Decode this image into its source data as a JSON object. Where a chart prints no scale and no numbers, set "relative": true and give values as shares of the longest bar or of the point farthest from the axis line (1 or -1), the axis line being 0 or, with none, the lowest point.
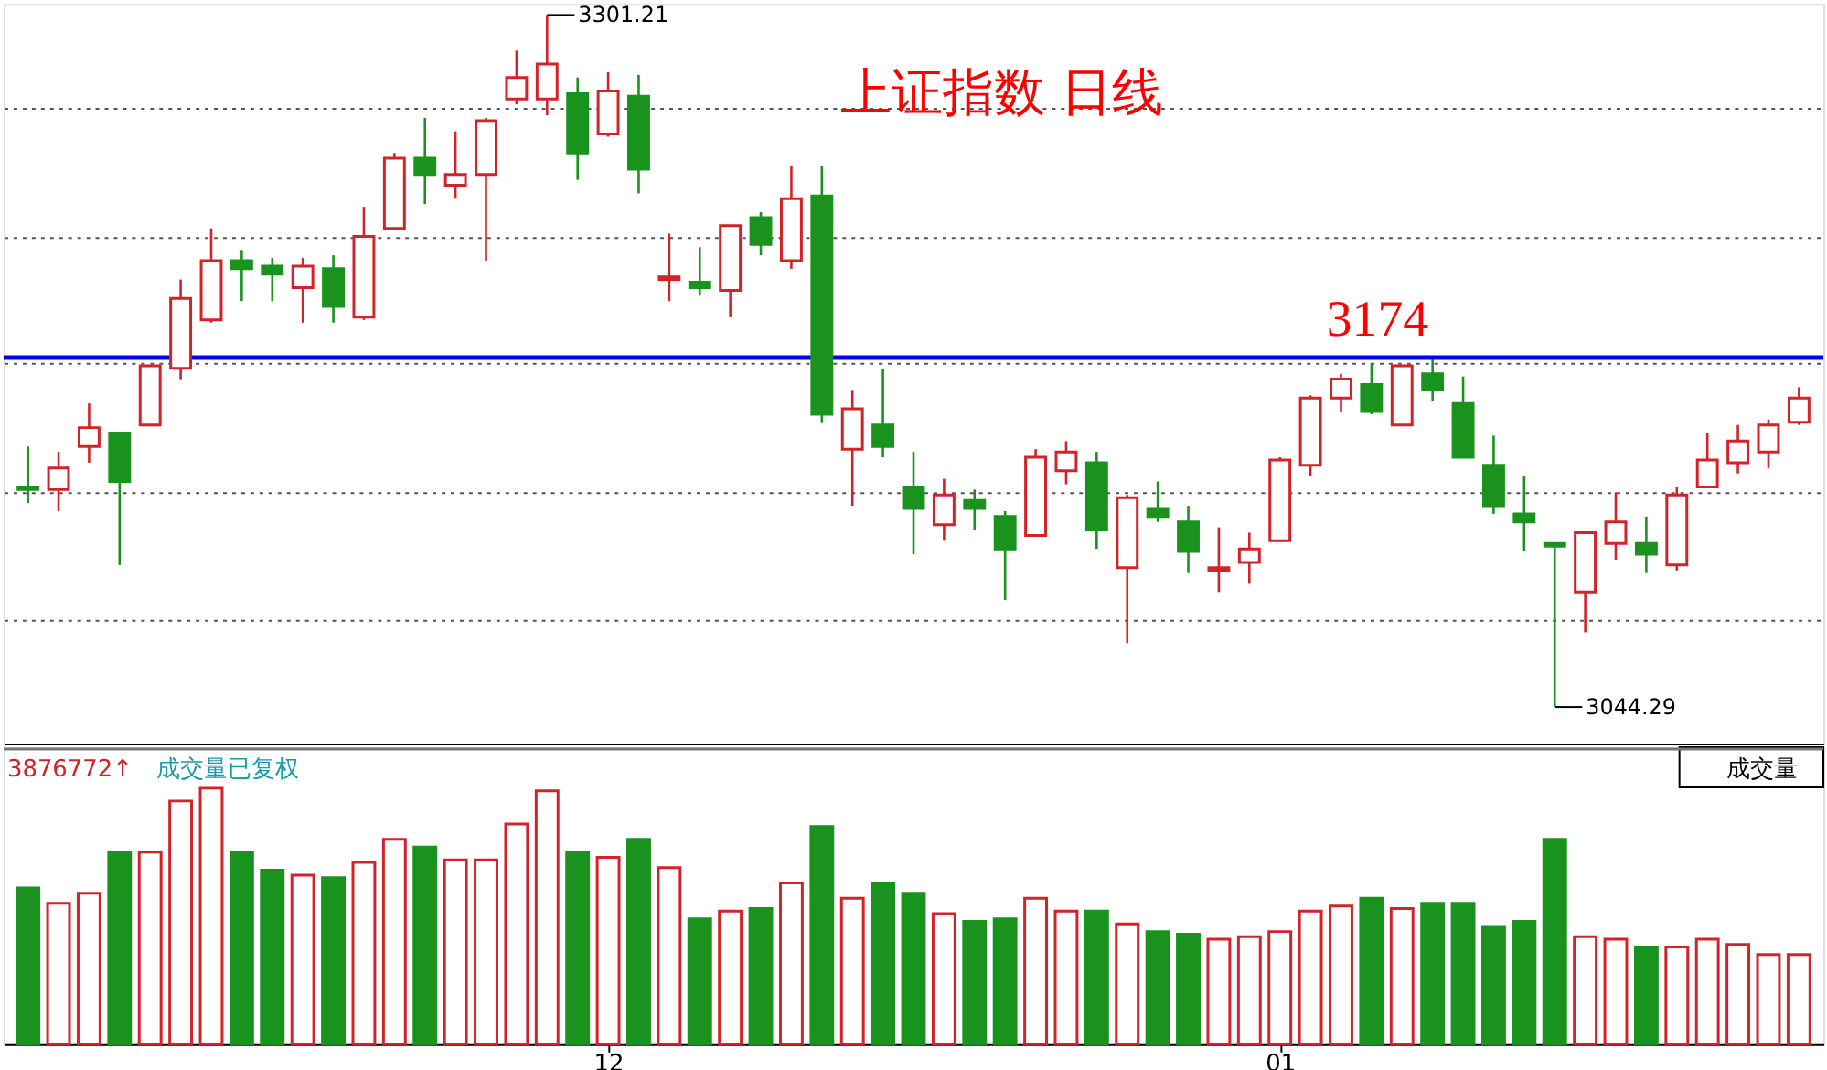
{
  "chart_data": [
    {
      "type": "candlestick",
      "title": "上证指数 日线",
      "categories": [
        null,
        null,
        null,
        null,
        null,
        null,
        null,
        null,
        null,
        null,
        null,
        null,
        null,
        null,
        null,
        null,
        null,
        null,
        null,
        "12",
        null,
        null,
        null,
        null,
        null,
        null,
        null,
        null,
        null,
        null,
        null,
        null,
        null,
        null,
        null,
        null,
        null,
        null,
        null,
        null,
        null,
        "01",
        null,
        null,
        null,
        null,
        null,
        null,
        null,
        null,
        null,
        null,
        null,
        null,
        null,
        null,
        null,
        null,
        null
      ],
      "ohlc": [
        [
          3126,
          3141,
          3120,
          3125
        ],
        [
          3125,
          3139,
          3117,
          3133
        ],
        [
          3141,
          3157,
          3135,
          3148
        ],
        [
          3146,
          3146,
          3097,
          3128
        ],
        [
          3149,
          3171,
          3149,
          3171
        ],
        [
          3170,
          3203,
          3166,
          3196
        ],
        [
          3188,
          3222,
          3187,
          3210
        ],
        [
          3210,
          3214,
          3195,
          3207
        ],
        [
          3208,
          3211,
          3195,
          3205
        ],
        [
          3200,
          3211,
          3187,
          3208
        ],
        [
          3207,
          3212,
          3187,
          3193
        ],
        [
          3189,
          3230,
          3188,
          3219
        ],
        [
          3222,
          3250,
          3222,
          3248
        ],
        [
          3248,
          3263,
          3231,
          3242
        ],
        [
          3238,
          3258,
          3233,
          3242
        ],
        [
          3242,
          3263,
          3210,
          3262
        ],
        [
          3270,
          3288,
          3268,
          3278
        ],
        [
          3270,
          3301.21,
          3264,
          3283
        ],
        [
          3272,
          3278,
          3240,
          3250
        ],
        [
          3257,
          3280,
          3256,
          3273
        ],
        [
          3271,
          3279,
          3235,
          3244
        ],
        [
          3203,
          3220,
          3195,
          3204
        ],
        [
          3202,
          3215,
          3197,
          3200
        ],
        [
          3199,
          3223,
          3189,
          3223
        ],
        [
          3226,
          3228,
          3212,
          3216
        ],
        [
          3210,
          3245,
          3207,
          3233
        ],
        [
          3234,
          3245,
          3150,
          3153
        ],
        [
          3140,
          3162,
          3119,
          3155
        ],
        [
          3149,
          3170,
          3137,
          3141
        ],
        [
          3126,
          3139,
          3101,
          3118
        ],
        [
          3112,
          3129,
          3106,
          3123
        ],
        [
          3121,
          3125,
          3110,
          3118
        ],
        [
          3115,
          3117,
          3084,
          3103
        ],
        [
          3108,
          3140,
          3108,
          3137
        ],
        [
          3132,
          3143,
          3127,
          3139
        ],
        [
          3135,
          3139,
          3103,
          3110
        ],
        [
          3096,
          3123,
          3068,
          3122
        ],
        [
          3118,
          3128,
          3113,
          3115
        ],
        [
          3113,
          3119,
          3094,
          3102
        ],
        [
          3095,
          3111,
          3087,
          3096
        ],
        [
          3098,
          3109,
          3090,
          3103
        ],
        [
          3106,
          3137,
          3106,
          3136
        ],
        [
          3134,
          3160,
          3130,
          3159
        ],
        [
          3159,
          3168,
          3154,
          3166
        ],
        [
          3164,
          3172,
          3153,
          3154
        ],
        [
          3149,
          3171,
          3149,
          3171
        ],
        [
          3168,
          3174,
          3158,
          3162
        ],
        [
          3157,
          3167,
          3137,
          3137
        ],
        [
          3134,
          3145,
          3116,
          3119
        ],
        [
          3116,
          3130,
          3102,
          3113
        ],
        [
          3105,
          3105,
          3044.29,
          3104
        ],
        [
          3087,
          3109,
          3072,
          3109
        ],
        [
          3105,
          3124,
          3099,
          3113
        ],
        [
          3105,
          3115,
          3094,
          3101
        ],
        [
          3097,
          3126,
          3095,
          3123
        ],
        [
          3126,
          3146,
          3126,
          3136
        ],
        [
          3135,
          3149,
          3131,
          3143
        ],
        [
          3139,
          3151,
          3133,
          3149
        ],
        [
          3150,
          3163,
          3149,
          3159
        ]
      ],
      "colors": [
        "#1a931e",
        "#d2232a",
        "#d2232a",
        "#1a931e",
        "#d2232a",
        "#d2232a",
        "#d2232a",
        "#1a931e",
        "#1a931e",
        "#d2232a",
        "#1a931e",
        "#d2232a",
        "#d2232a",
        "#1a931e",
        "#d2232a",
        "#d2232a",
        "#d2232a",
        "#d2232a",
        "#1a931e",
        "#d2232a",
        "#1a931e",
        "#d2232a",
        "#1a931e",
        "#d2232a",
        "#1a931e",
        "#d2232a",
        "#1a931e",
        "#d2232a",
        "#1a931e",
        "#1a931e",
        "#d2232a",
        "#1a931e",
        "#1a931e",
        "#d2232a",
        "#d2232a",
        "#1a931e",
        "#d2232a",
        "#1a931e",
        "#1a931e",
        "#d2232a",
        "#d2232a",
        "#d2232a",
        "#d2232a",
        "#d2232a",
        "#1a931e",
        "#d2232a",
        "#1a931e",
        "#1a931e",
        "#1a931e",
        "#1a931e",
        "#1a931e",
        "#d2232a",
        "#d2232a",
        "#1a931e",
        "#d2232a",
        "#d2232a",
        "#d2232a",
        "#d2232a",
        "#d2232a"
      ],
      "ylim": [
        3030.7,
        3305.3
      ],
      "yticks": [
        {
          "value": 3267,
          "label": null
        },
        {
          "value": 3219,
          "label": null
        },
        {
          "value": 3172,
          "label": null
        },
        {
          "value": 3124,
          "label": null
        },
        {
          "value": 3077,
          "label": null
        }
      ],
      "grid": "y",
      "tick_labels": false,
      "ref_lines": [
        {
          "axis": "y",
          "value": 3174,
          "label": "3174",
          "color": "#0000ee"
        }
      ],
      "annotations": [
        "3301.21",
        "3044.29"
      ]
    },
    {
      "type": "bar",
      "relative": true,
      "tick_labels": "x",
      "categories": [
        null,
        null,
        null,
        null,
        null,
        null,
        null,
        null,
        null,
        null,
        null,
        null,
        null,
        null,
        null,
        null,
        null,
        null,
        null,
        "12",
        null,
        null,
        null,
        null,
        null,
        null,
        null,
        null,
        null,
        null,
        null,
        null,
        null,
        null,
        null,
        null,
        null,
        null,
        null,
        null,
        null,
        "01",
        null,
        null,
        null,
        null,
        null,
        null,
        null,
        null,
        null,
        null,
        null,
        null,
        null,
        null,
        null,
        null,
        null
      ],
      "values": [
        0.61,
        0.55,
        0.59,
        0.75,
        0.75,
        0.95,
        1,
        0.75,
        0.68,
        0.66,
        0.65,
        0.71,
        0.8,
        0.77,
        0.72,
        0.72,
        0.86,
        0.99,
        0.75,
        0.73,
        0.8,
        0.69,
        0.49,
        0.52,
        0.53,
        0.63,
        0.85,
        0.57,
        0.63,
        0.59,
        0.51,
        0.48,
        0.49,
        0.57,
        0.52,
        0.52,
        0.47,
        0.44,
        0.43,
        0.41,
        0.42,
        0.44,
        0.52,
        0.54,
        0.57,
        0.53,
        0.55,
        0.55,
        0.46,
        0.48,
        0.8,
        0.42,
        0.41,
        0.38,
        0.38,
        0.41,
        0.39,
        0.35,
        0.35
      ],
      "colors": [
        "#1a931e",
        "#d2232a",
        "#d2232a",
        "#1a931e",
        "#d2232a",
        "#d2232a",
        "#d2232a",
        "#1a931e",
        "#1a931e",
        "#d2232a",
        "#1a931e",
        "#d2232a",
        "#d2232a",
        "#1a931e",
        "#d2232a",
        "#d2232a",
        "#d2232a",
        "#d2232a",
        "#1a931e",
        "#d2232a",
        "#1a931e",
        "#d2232a",
        "#1a931e",
        "#d2232a",
        "#1a931e",
        "#d2232a",
        "#1a931e",
        "#d2232a",
        "#1a931e",
        "#1a931e",
        "#d2232a",
        "#1a931e",
        "#1a931e",
        "#d2232a",
        "#d2232a",
        "#1a931e",
        "#d2232a",
        "#1a931e",
        "#1a931e",
        "#d2232a",
        "#d2232a",
        "#d2232a",
        "#d2232a",
        "#d2232a",
        "#1a931e",
        "#d2232a",
        "#1a931e",
        "#1a931e",
        "#1a931e",
        "#1a931e",
        "#1a931e",
        "#d2232a",
        "#d2232a",
        "#1a931e",
        "#d2232a",
        "#d2232a",
        "#d2232a",
        "#d2232a",
        "#d2232a"
      ],
      "annotations": [
        "3876772↑",
        "成交量已复权",
        "成交量"
      ]
    }
  ]
}
